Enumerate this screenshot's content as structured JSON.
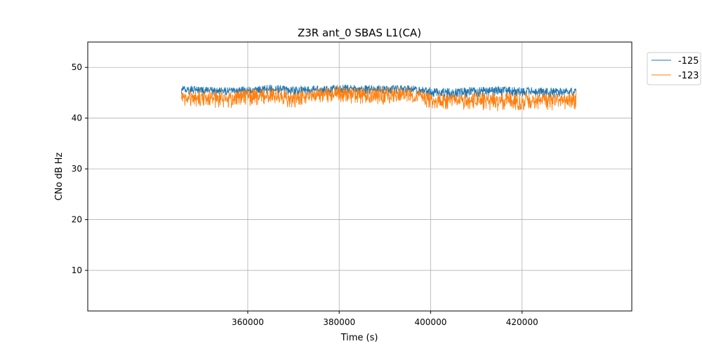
{
  "chart_data": {
    "type": "line",
    "title": "Z3R ant_0 SBAS L1(CA)",
    "xlabel": "Time (s)",
    "ylabel": "CNo dB Hz",
    "xlim": [
      325000,
      444000
    ],
    "ylim": [
      2,
      55
    ],
    "xticks": [
      360000,
      380000,
      400000,
      420000
    ],
    "xtick_labels": [
      "360000",
      "380000",
      "400000",
      "420000"
    ],
    "yticks": [
      10,
      20,
      30,
      40,
      50
    ],
    "ytick_labels": [
      "10",
      "20",
      "30",
      "40",
      "50"
    ],
    "grid": true,
    "legend_placement": "outside-top-right",
    "series": [
      {
        "name": "-125",
        "color": "#1f77b4",
        "x": [
          345500,
          350000,
          355000,
          360000,
          365000,
          370000,
          375000,
          380000,
          385000,
          390000,
          395000,
          400000,
          405000,
          410000,
          415000,
          420000,
          425000,
          430000,
          431800
        ],
        "y": [
          45.5,
          45.4,
          45.3,
          45.5,
          45.7,
          45.4,
          45.6,
          45.8,
          45.6,
          45.7,
          45.7,
          45.2,
          45.0,
          45.2,
          45.3,
          45.2,
          45.1,
          45.1,
          45.3
        ],
        "noise_min": [
          44.6,
          44.5,
          44.4,
          44.6,
          44.8,
          44.5,
          44.7,
          44.9,
          44.7,
          44.8,
          44.8,
          44.1,
          43.8,
          44.1,
          44.2,
          44.1,
          44.0,
          44.0,
          44.2
        ],
        "noise_max": [
          46.4,
          46.2,
          46.1,
          46.3,
          46.7,
          46.2,
          46.5,
          46.7,
          46.5,
          46.6,
          46.5,
          46.1,
          45.9,
          46.2,
          46.3,
          46.1,
          46.1,
          46.0,
          46.4
        ]
      },
      {
        "name": "-123",
        "color": "#ff7f0e",
        "x": [
          345500,
          350000,
          355000,
          360000,
          365000,
          370000,
          375000,
          380000,
          385000,
          390000,
          395000,
          400000,
          405000,
          410000,
          415000,
          420000,
          425000,
          430000,
          431800
        ],
        "y": [
          44.2,
          44.0,
          43.8,
          44.1,
          44.4,
          43.9,
          44.3,
          44.8,
          44.4,
          44.5,
          44.6,
          43.6,
          43.2,
          43.4,
          43.5,
          43.5,
          43.4,
          43.3,
          43.6
        ],
        "noise_min": [
          42.0,
          42.3,
          41.8,
          42.3,
          42.9,
          41.9,
          42.8,
          43.1,
          42.6,
          42.7,
          43.0,
          41.9,
          41.4,
          41.6,
          41.2,
          41.6,
          41.6,
          41.4,
          41.5
        ],
        "noise_max": [
          45.8,
          45.6,
          45.4,
          45.7,
          46.0,
          45.5,
          45.9,
          46.3,
          45.9,
          46.0,
          46.2,
          45.2,
          44.8,
          45.1,
          45.2,
          45.1,
          45.0,
          44.9,
          45.4
        ]
      }
    ]
  }
}
